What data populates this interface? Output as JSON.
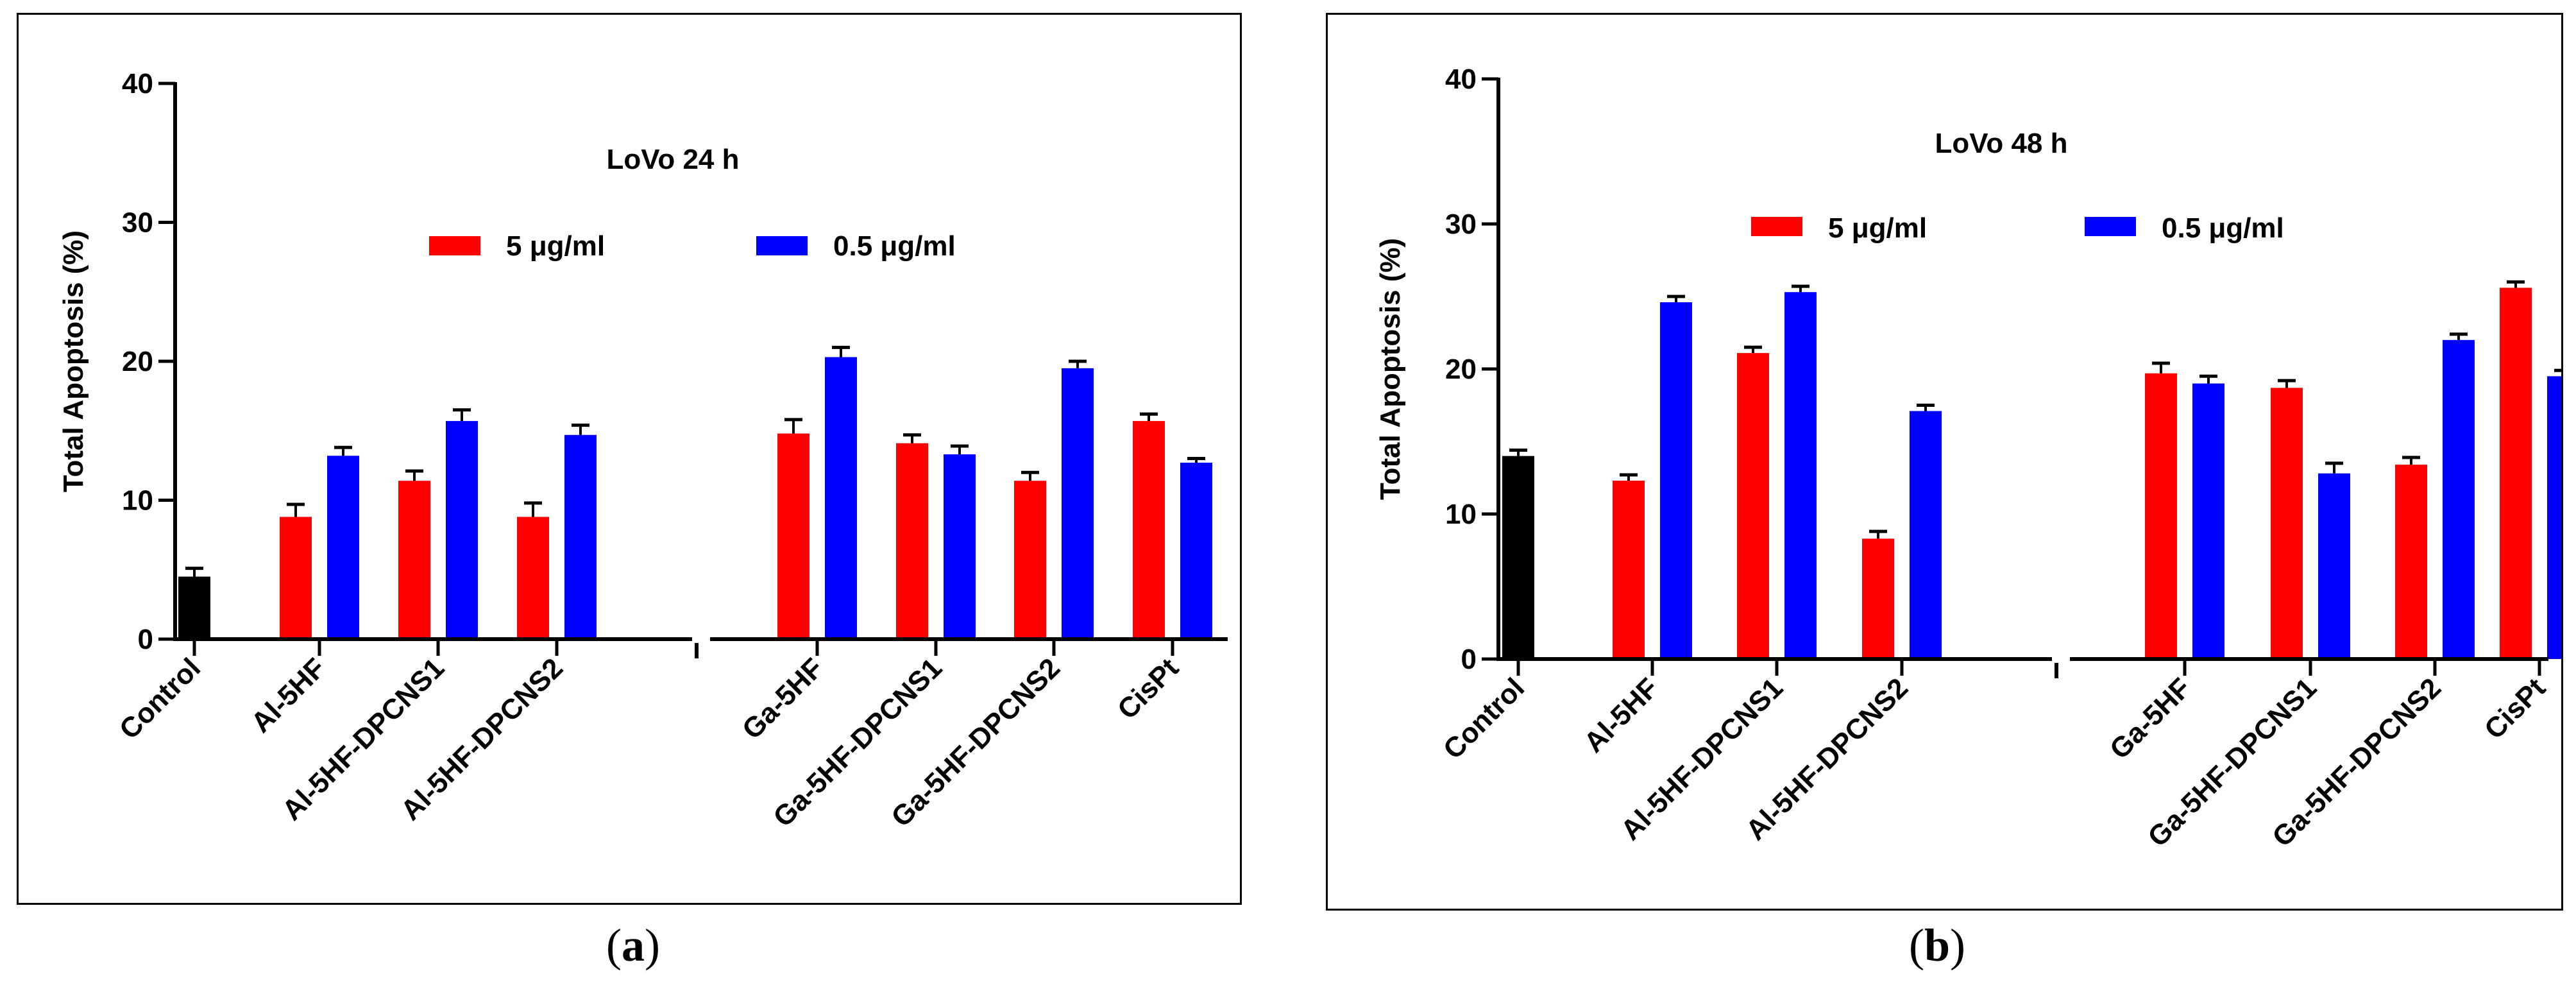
{
  "colors": {
    "control": "#000000",
    "series1": "#ff0000",
    "series2": "#0000ff",
    "axis": "#000000"
  },
  "captions": [
    {
      "open": "(",
      "letter": "a",
      "close": ")"
    },
    {
      "open": "(",
      "letter": "b",
      "close": ")"
    }
  ],
  "chart_data": [
    {
      "type": "bar",
      "title": "LoVo 24 h",
      "ylabel": "Total Apoptosis (%)",
      "xlabel": "",
      "ylim": [
        0,
        40
      ],
      "yticks": [
        0,
        10,
        20,
        30,
        40
      ],
      "legend": {
        "placement": "top-center",
        "entries": [
          "5 μg/ml",
          "0.5 μg/ml"
        ]
      },
      "categories": [
        "Control",
        "Al-5HF",
        "Al-5HF-DPCNS1",
        "Al-5HF-DPCNS2",
        "Ga-5HF",
        "Ga-5HF-DPCNS1",
        "Ga-5HF-DPCNS2",
        "CisPt"
      ],
      "control": {
        "value": 4.5,
        "error": 0.6
      },
      "series": [
        {
          "name": "5 μg/ml",
          "values": [
            null,
            8.8,
            11.4,
            8.8,
            14.8,
            14.1,
            11.4,
            15.7
          ],
          "errors": [
            null,
            0.9,
            0.7,
            1.0,
            1.0,
            0.6,
            0.6,
            0.5
          ]
        },
        {
          "name": "0.5 μg/ml",
          "values": [
            null,
            13.2,
            15.7,
            14.7,
            20.3,
            13.3,
            19.5,
            12.7
          ],
          "errors": [
            null,
            0.6,
            0.8,
            0.7,
            0.7,
            0.6,
            0.5,
            0.3
          ]
        }
      ]
    },
    {
      "type": "bar",
      "title": "LoVo 48 h",
      "ylabel": "Total Apoptosis (%)",
      "xlabel": "",
      "ylim": [
        0,
        40
      ],
      "yticks": [
        0,
        10,
        20,
        30,
        40
      ],
      "legend": {
        "placement": "top-center",
        "entries": [
          "5 μg/ml",
          "0.5 μg/ml"
        ]
      },
      "categories": [
        "Control",
        "Al-5HF",
        "Al-5HF-DPCNS1",
        "Al-5HF-DPCNS2",
        "Ga-5HF",
        "Ga-5HF-DPCNS1",
        "Ga-5HF-DPCNS2",
        "CisPt"
      ],
      "control": {
        "value": 14.0,
        "error": 0.4
      },
      "series": [
        {
          "name": "5 μg/ml",
          "values": [
            null,
            12.3,
            21.1,
            8.3,
            19.7,
            18.7,
            13.4,
            25.6
          ],
          "errors": [
            null,
            0.4,
            0.4,
            0.5,
            0.7,
            0.5,
            0.5,
            0.4
          ]
        },
        {
          "name": "0.5 μg/ml",
          "values": [
            null,
            24.6,
            25.3,
            17.1,
            19.0,
            12.8,
            22.0,
            19.5
          ],
          "errors": [
            null,
            0.4,
            0.4,
            0.4,
            0.5,
            0.7,
            0.4,
            0.4
          ]
        }
      ]
    }
  ]
}
